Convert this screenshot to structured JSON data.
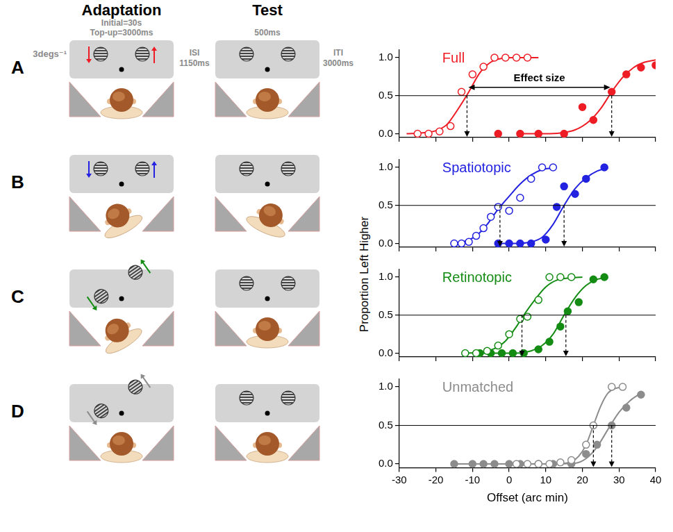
{
  "figure": {
    "columns": [
      "Adaptation",
      "Test"
    ],
    "adaptation_timing": [
      "Initial=30s",
      "Top-up=3000ms"
    ],
    "test_timing": "500ms",
    "speed": "3degs⁻¹",
    "isi": [
      "ISI",
      "1150ms"
    ],
    "iti": [
      "ITI",
      "3000ms"
    ],
    "rows": [
      {
        "letter": "A",
        "color": "#ee1c24"
      },
      {
        "letter": "B",
        "color": "#2222e0"
      },
      {
        "letter": "C",
        "color": "#148c14"
      },
      {
        "letter": "D",
        "color": "#8c8c8c"
      }
    ]
  },
  "y_label": "Proportion Left Higher",
  "chart_data": [
    {
      "type": "scatter",
      "title": "Full",
      "xlim": [
        -30,
        40
      ],
      "xticks": [
        -30,
        -20,
        -10,
        0,
        10,
        20,
        30,
        40
      ],
      "ylim": [
        -0.05,
        1.1
      ],
      "yticks": [
        {
          "value": 0,
          "label": "0.0"
        },
        {
          "value": 0.5,
          "label": "0.5"
        },
        {
          "value": 1,
          "label": "1.0"
        }
      ],
      "grid": false,
      "tick_labels": "y",
      "reference_line": 0.5,
      "annotation": "Effect size",
      "series": [
        {
          "color": "#ee1c24",
          "marker": "open",
          "pse": -11.5,
          "x": [
            -25,
            -22,
            -19,
            -16,
            -13,
            -10,
            -7,
            -4,
            -1,
            2,
            5
          ],
          "values": [
            0,
            0,
            0.03,
            0.1,
            0.55,
            0.78,
            0.88,
            1,
            1,
            1,
            1
          ],
          "fit_x": [
            -28,
            -24,
            -20,
            -17,
            -14,
            -11,
            -8,
            -5,
            -2,
            1,
            4,
            8
          ],
          "fit_values": [
            0,
            0.01,
            0.04,
            0.12,
            0.32,
            0.55,
            0.8,
            0.94,
            0.99,
            1,
            1,
            1
          ]
        },
        {
          "color": "#ee1c24",
          "marker": "filled",
          "pse": 28,
          "x": [
            -3,
            3,
            8,
            15,
            20,
            23,
            28,
            32,
            36,
            40
          ],
          "values": [
            0,
            0,
            0,
            0,
            0.35,
            0.18,
            0.55,
            0.78,
            0.87,
            0.9
          ],
          "fit_x": [
            3,
            10,
            14,
            18,
            22,
            25,
            28,
            31,
            34,
            37,
            40
          ],
          "fit_values": [
            0,
            0,
            0.01,
            0.05,
            0.17,
            0.33,
            0.55,
            0.74,
            0.87,
            0.94,
            0.97
          ]
        }
      ]
    },
    {
      "type": "scatter",
      "title": "Spatiotopic",
      "xlim": [
        -30,
        40
      ],
      "xticks": [
        -30,
        -20,
        -10,
        0,
        10,
        20,
        30,
        40
      ],
      "ylim": [
        -0.05,
        1.1
      ],
      "yticks": [
        {
          "value": 0,
          "label": "0.0"
        },
        {
          "value": 0.5,
          "label": "0.5"
        },
        {
          "value": 1,
          "label": "1.0"
        }
      ],
      "grid": false,
      "tick_labels": "y",
      "reference_line": 0.5,
      "series": [
        {
          "color": "#2222e0",
          "marker": "open",
          "pse": -2.5,
          "x": [
            -15,
            -13,
            -11,
            -9,
            -7,
            -5,
            -3,
            0,
            3,
            6,
            9,
            12
          ],
          "values": [
            0,
            0,
            0.02,
            0.1,
            0.2,
            0.35,
            0.48,
            0.43,
            0.6,
            0.85,
            1,
            1
          ],
          "fit_x": [
            -16,
            -12,
            -9,
            -6,
            -3,
            0,
            3,
            6,
            9,
            12
          ],
          "fit_values": [
            0,
            0.03,
            0.1,
            0.25,
            0.45,
            0.62,
            0.78,
            0.9,
            0.97,
            0.99
          ]
        },
        {
          "color": "#2222e0",
          "marker": "filled",
          "pse": 15,
          "x": [
            -3,
            0,
            3,
            6,
            10,
            13,
            15,
            18,
            21,
            26
          ],
          "values": [
            0,
            0,
            0,
            0,
            0.05,
            0.48,
            0.75,
            0.65,
            0.85,
            1
          ],
          "fit_x": [
            -4,
            2,
            6,
            9,
            12,
            15,
            18,
            21,
            24,
            27
          ],
          "fit_values": [
            0,
            0,
            0.02,
            0.08,
            0.25,
            0.5,
            0.72,
            0.86,
            0.95,
            0.99
          ]
        }
      ]
    },
    {
      "type": "scatter",
      "title": "Retinotopic",
      "xlim": [
        -30,
        40
      ],
      "xticks": [
        -30,
        -20,
        -10,
        0,
        10,
        20,
        30,
        40
      ],
      "ylim": [
        -0.05,
        1.1
      ],
      "yticks": [
        {
          "value": 0,
          "label": "0.0"
        },
        {
          "value": 0.5,
          "label": "0.5"
        },
        {
          "value": 1,
          "label": "1.0"
        }
      ],
      "grid": false,
      "tick_labels": "y",
      "reference_line": 0.5,
      "series": [
        {
          "color": "#148c14",
          "marker": "open",
          "pse": 3.5,
          "x": [
            -12,
            -9,
            -6,
            -3,
            0,
            3,
            5,
            8,
            11,
            14,
            17
          ],
          "values": [
            0,
            0,
            0.03,
            0.1,
            0.25,
            0.45,
            0.48,
            0.7,
            1,
            1,
            1
          ],
          "fit_x": [
            -13,
            -8,
            -4,
            -1,
            2,
            4,
            7,
            10,
            13,
            17,
            20
          ],
          "fit_values": [
            0,
            0.01,
            0.06,
            0.16,
            0.35,
            0.5,
            0.7,
            0.87,
            0.96,
            0.99,
            1
          ]
        },
        {
          "color": "#148c14",
          "marker": "filled",
          "pse": 15.5,
          "x": [
            -8,
            -5,
            -2,
            1,
            4,
            8,
            11,
            14,
            16,
            19,
            23,
            26
          ],
          "values": [
            0,
            0,
            0,
            0,
            0,
            0.05,
            0.15,
            0.35,
            0.55,
            0.67,
            0.97,
            1
          ],
          "fit_x": [
            -9,
            2,
            6,
            9,
            12,
            15,
            18,
            21,
            24,
            27
          ],
          "fit_values": [
            0,
            0,
            0.03,
            0.1,
            0.25,
            0.5,
            0.73,
            0.89,
            0.97,
            0.99
          ]
        }
      ]
    },
    {
      "type": "scatter",
      "title": "Unmatched",
      "xlim": [
        -30,
        40
      ],
      "xticks": [
        -30,
        -20,
        -10,
        0,
        10,
        20,
        30,
        40
      ],
      "ylim": [
        -0.05,
        1.1
      ],
      "yticks": [
        {
          "value": 0,
          "label": "0.0"
        },
        {
          "value": 0.5,
          "label": "0.5"
        },
        {
          "value": 1,
          "label": "1.0"
        }
      ],
      "grid": false,
      "tick_labels": true,
      "reference_line": 0.5,
      "x_label": "Offset (arc min)",
      "series": [
        {
          "color": "#8c8c8c",
          "marker": "open",
          "pse": 23,
          "x": [
            2,
            5,
            8,
            11,
            14,
            17,
            21,
            23,
            28,
            31
          ],
          "values": [
            0,
            0,
            0,
            0,
            0.02,
            0.05,
            0.25,
            0.5,
            1,
            1
          ],
          "fit_x": [
            14,
            17,
            19,
            21,
            23,
            25,
            27,
            29,
            31
          ],
          "fit_values": [
            0,
            0.03,
            0.1,
            0.25,
            0.5,
            0.75,
            0.92,
            0.98,
            1
          ]
        },
        {
          "color": "#8c8c8c",
          "marker": "filled",
          "pse": 28,
          "x": [
            -15,
            -10,
            -7,
            -4,
            0,
            3,
            8,
            12,
            17,
            21,
            24,
            28,
            32,
            36
          ],
          "values": [
            0,
            0,
            0,
            0,
            0,
            0,
            0,
            0,
            0,
            0.13,
            0.25,
            0.5,
            0.73,
            0.9
          ],
          "fit_x": [
            -15,
            10,
            18,
            21,
            24,
            27,
            30,
            33,
            36
          ],
          "fit_values": [
            0,
            0,
            0.01,
            0.07,
            0.22,
            0.45,
            0.67,
            0.82,
            0.92
          ]
        }
      ]
    }
  ]
}
